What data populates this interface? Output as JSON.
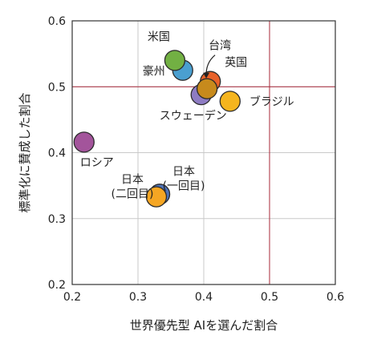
{
  "chart_data": {
    "type": "scatter",
    "xlabel": "世界優先型 AIを選んだ割合",
    "ylabel": "標準化に賛成した割合",
    "xlim": [
      0.2,
      0.6
    ],
    "ylim": [
      0.2,
      0.6
    ],
    "x_ticks": [
      "0.2",
      "0.3",
      "0.4",
      "0.5",
      "0.6"
    ],
    "y_ticks": [
      "0.2",
      "0.3",
      "0.4",
      "0.5",
      "0.6"
    ],
    "grid": true,
    "reference_lines": {
      "x": 0.5,
      "y": 0.5,
      "color": "#a8283a"
    },
    "points": [
      {
        "label": "米国",
        "x": 0.356,
        "y": 0.54,
        "color": "#72b043"
      },
      {
        "label": "豪州",
        "x": 0.368,
        "y": 0.525,
        "color": "#4a9fd0"
      },
      {
        "label": "英国",
        "x": 0.41,
        "y": 0.508,
        "color": "#e8622a"
      },
      {
        "label": "台湾",
        "x": 0.405,
        "y": 0.497,
        "color": "#c78a1c"
      },
      {
        "label": "スウェーデン",
        "x": 0.396,
        "y": 0.488,
        "color": "#8e7cc3"
      },
      {
        "label": "ブラジル",
        "x": 0.44,
        "y": 0.478,
        "color": "#f5b51e"
      },
      {
        "label": "ロシア",
        "x": 0.218,
        "y": 0.416,
        "color": "#a3549b"
      },
      {
        "label": "日本\n(一回目)",
        "x": 0.333,
        "y": 0.337,
        "color": "#4f73b8"
      },
      {
        "label": "日本\n(二回目)",
        "x": 0.328,
        "y": 0.333,
        "color": "#f5a623"
      }
    ]
  }
}
